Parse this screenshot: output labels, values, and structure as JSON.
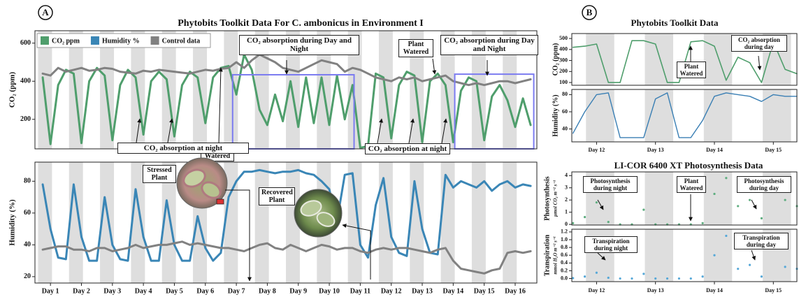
{
  "chart_data": [
    {
      "type": "line",
      "panel": "A",
      "title": "Phytobits Toolkit Data For C. ambonicus in Environment I",
      "ylabel": "CO₂ (ppm)",
      "legend": "upper left",
      "xlim": [
        0.5,
        16.7
      ],
      "ylim": [
        45,
        665
      ],
      "yticks": [
        200,
        400,
        600
      ],
      "x": [
        0.75,
        1,
        1.25,
        1.5,
        1.75,
        2,
        2.25,
        2.5,
        2.75,
        3,
        3.25,
        3.5,
        3.75,
        4,
        4.25,
        4.5,
        4.75,
        5,
        5.25,
        5.5,
        5.75,
        6,
        6.25,
        6.5,
        6.75,
        7,
        7.25,
        7.5,
        7.75,
        8,
        8.25,
        8.5,
        8.75,
        9,
        9.25,
        9.5,
        9.75,
        10,
        10.25,
        10.5,
        10.75,
        11,
        11.25,
        11.5,
        11.75,
        12,
        12.25,
        12.5,
        12.75,
        13,
        13.25,
        13.5,
        13.75,
        14,
        14.25,
        14.5,
        14.75,
        15,
        15.25,
        15.5,
        15.75,
        16,
        16.25,
        16.5
      ],
      "series": [
        {
          "name": "CO₂ ppm",
          "color": "#4f9e6c",
          "values": [
            420,
            70,
            380,
            460,
            440,
            75,
            400,
            470,
            430,
            90,
            380,
            460,
            420,
            120,
            400,
            450,
            410,
            110,
            380,
            450,
            420,
            180,
            420,
            470,
            480,
            330,
            540,
            460,
            250,
            170,
            330,
            190,
            400,
            160,
            420,
            180,
            420,
            170,
            430,
            200,
            380,
            50,
            60,
            440,
            420,
            100,
            380,
            450,
            430,
            80,
            400,
            440,
            380,
            80,
            350,
            420,
            400,
            90,
            320,
            380,
            300,
            160,
            310,
            170
          ]
        },
        {
          "name": "Control data",
          "color": "#818181",
          "values": [
            440,
            430,
            470,
            450,
            460,
            470,
            455,
            460,
            470,
            465,
            450,
            445,
            440,
            455,
            450,
            460,
            455,
            450,
            445,
            440,
            450,
            460,
            455,
            465,
            470,
            500,
            470,
            510,
            540,
            520,
            500,
            470,
            460,
            450,
            470,
            490,
            510,
            500,
            490,
            450,
            470,
            460,
            440,
            420,
            410,
            400,
            420,
            410,
            420,
            400,
            410,
            420,
            430,
            400,
            390,
            380,
            390,
            380,
            390,
            400,
            400,
            390,
            400,
            410
          ]
        }
      ],
      "night_bands": [
        [
          0.6,
          1.05
        ],
        [
          1.6,
          2.05
        ],
        [
          2.6,
          3.05
        ],
        [
          3.6,
          4.05
        ],
        [
          4.6,
          5.05
        ],
        [
          5.6,
          6.05
        ],
        [
          6.6,
          7.05
        ],
        [
          7.6,
          8.05
        ],
        [
          8.6,
          9.05
        ],
        [
          9.6,
          10.05
        ],
        [
          10.6,
          11.05
        ],
        [
          11.6,
          12.05
        ],
        [
          12.6,
          13.05
        ],
        [
          13.6,
          14.05
        ],
        [
          14.6,
          15.05
        ],
        [
          15.6,
          16.05
        ]
      ],
      "highlights": [
        {
          "x": [
            6.88,
            10.8
          ],
          "y": [
            45,
            434
          ]
        },
        {
          "x": [
            14.05,
            16.6
          ],
          "y": [
            45,
            437
          ]
        }
      ],
      "annotations": [
        {
          "text": "CO₂ absorption during Day and Night"
        },
        {
          "text": "Plant Watered"
        },
        {
          "text": "CO₂ absorption during Day and Night"
        },
        {
          "text": "Plant Watered"
        },
        {
          "text": "CO₂ absorption at night"
        },
        {
          "text": "CO₂ absorption at night"
        }
      ]
    },
    {
      "type": "line",
      "ylabel": "Humidity (%)",
      "xlim": [
        0.5,
        16.7
      ],
      "ylim": [
        16,
        92
      ],
      "yticks": [
        20,
        40,
        60,
        80
      ],
      "xticks": [
        {
          "value": 1,
          "label": "Day 1"
        },
        {
          "value": 2,
          "label": "Day 2"
        },
        {
          "value": 3,
          "label": "Day 3"
        },
        {
          "value": 4,
          "label": "Day 4"
        },
        {
          "value": 5,
          "label": "Day 5"
        },
        {
          "value": 6,
          "label": "Day 6"
        },
        {
          "value": 7,
          "label": "Day 7"
        },
        {
          "value": 8,
          "label": "Day 8"
        },
        {
          "value": 9,
          "label": "Day 9"
        },
        {
          "value": 10,
          "label": "Day 10"
        },
        {
          "value": 11,
          "label": "Day 11"
        },
        {
          "value": 12,
          "label": "Day 12"
        },
        {
          "value": 13,
          "label": "Day 13"
        },
        {
          "value": 14,
          "label": "Day 14"
        },
        {
          "value": 15,
          "label": "Day 15"
        },
        {
          "value": 16,
          "label": "Day 16"
        }
      ],
      "x": [
        0.75,
        1,
        1.25,
        1.5,
        1.75,
        2,
        2.25,
        2.5,
        2.75,
        3,
        3.25,
        3.5,
        3.75,
        4,
        4.25,
        4.5,
        4.75,
        5,
        5.25,
        5.5,
        5.75,
        6,
        6.25,
        6.5,
        6.75,
        7,
        7.25,
        7.5,
        7.75,
        8,
        8.25,
        8.5,
        8.75,
        9,
        9.25,
        9.5,
        9.75,
        10,
        10.25,
        10.5,
        10.75,
        11,
        11.25,
        11.5,
        11.75,
        12,
        12.25,
        12.5,
        12.75,
        13,
        13.25,
        13.5,
        13.75,
        14,
        14.25,
        14.5,
        14.75,
        15,
        15.25,
        15.5,
        15.75,
        16,
        16.25,
        16.5
      ],
      "series": [
        {
          "name": "Humidity %",
          "color": "#3a86b6",
          "values": [
            78,
            50,
            32,
            31,
            78,
            45,
            30,
            30,
            70,
            40,
            31,
            30,
            75,
            45,
            30,
            30,
            68,
            40,
            30,
            30,
            58,
            38,
            30,
            35,
            70,
            80,
            86,
            86,
            87,
            86,
            85,
            86,
            86,
            87,
            85,
            84,
            80,
            75,
            55,
            84,
            85,
            40,
            32,
            65,
            82,
            45,
            35,
            33,
            80,
            50,
            35,
            34,
            84,
            76,
            80,
            78,
            76,
            80,
            74,
            78,
            80,
            76,
            78,
            77
          ]
        },
        {
          "color": "#818181",
          "values": [
            37,
            38,
            39,
            39,
            37,
            37,
            36,
            38,
            38,
            36,
            37,
            38,
            40,
            38,
            39,
            40,
            40,
            41,
            42,
            40,
            41,
            40,
            39,
            38,
            38,
            37,
            36,
            38,
            40,
            41,
            38,
            37,
            40,
            38,
            36,
            38,
            40,
            39,
            37,
            38,
            38,
            36,
            35,
            37,
            38,
            37,
            38,
            38,
            37,
            36,
            35,
            37,
            38,
            30,
            25,
            24,
            23,
            22,
            24,
            25,
            35,
            36,
            35,
            36
          ]
        }
      ],
      "night_bands": [
        [
          0.6,
          1.05
        ],
        [
          1.6,
          2.05
        ],
        [
          2.6,
          3.05
        ],
        [
          3.6,
          4.05
        ],
        [
          4.6,
          5.05
        ],
        [
          5.6,
          6.05
        ],
        [
          6.6,
          7.05
        ],
        [
          7.6,
          8.05
        ],
        [
          8.6,
          9.05
        ],
        [
          9.6,
          10.05
        ],
        [
          10.6,
          11.05
        ],
        [
          11.6,
          12.05
        ],
        [
          12.6,
          13.05
        ],
        [
          13.6,
          14.05
        ],
        [
          14.6,
          15.05
        ],
        [
          15.6,
          16.05
        ]
      ],
      "annotations": [
        {
          "text": "Stressed Plant"
        },
        {
          "text": "Recovered Plant"
        }
      ]
    },
    {
      "type": "line",
      "panel": "B",
      "title": "Phytobits Toolkit Data",
      "ylabel": "CO₂ (ppm)",
      "xlim": [
        11.58,
        15.4
      ],
      "ylim": [
        75,
        545
      ],
      "yticks": [
        100,
        200,
        300,
        400,
        500
      ],
      "x": [
        11.6,
        11.8,
        12.0,
        12.2,
        12.4,
        12.6,
        12.8,
        13.0,
        13.2,
        13.4,
        13.6,
        13.8,
        14.0,
        14.2,
        14.4,
        14.6,
        14.8,
        15.0,
        15.2,
        15.4
      ],
      "series": [
        {
          "color": "#4f9e6c",
          "values": [
            420,
            430,
            450,
            100,
            100,
            480,
            480,
            450,
            100,
            100,
            470,
            480,
            430,
            120,
            330,
            280,
            100,
            470,
            220,
            180
          ]
        }
      ],
      "night_bands": [
        [
          11.82,
          12.3
        ],
        [
          12.82,
          13.3
        ],
        [
          13.82,
          14.3
        ],
        [
          14.82,
          15.3
        ]
      ],
      "annotations": [
        {
          "text": "Plant Watered"
        },
        {
          "text": "CO₂ absorption during day"
        }
      ]
    },
    {
      "type": "line",
      "ylabel": "Humidity (%)",
      "xlim": [
        11.58,
        15.4
      ],
      "ylim": [
        25,
        86
      ],
      "yticks": [
        40,
        60,
        80
      ],
      "xticks": [
        {
          "value": 12,
          "label": "Day 12"
        },
        {
          "value": 13,
          "label": "Day 13"
        },
        {
          "value": 14,
          "label": "Day 14"
        },
        {
          "value": 15,
          "label": "Day 15"
        }
      ],
      "x": [
        11.6,
        11.8,
        12.0,
        12.2,
        12.4,
        12.6,
        12.8,
        13.0,
        13.2,
        13.4,
        13.6,
        13.8,
        14.0,
        14.2,
        14.4,
        14.6,
        14.8,
        15.0,
        15.2,
        15.4
      ],
      "series": [
        {
          "color": "#3a7fb4",
          "values": [
            35,
            60,
            80,
            82,
            30,
            30,
            30,
            75,
            82,
            30,
            30,
            50,
            78,
            82,
            80,
            78,
            72,
            80,
            78,
            78
          ]
        }
      ],
      "night_bands": [
        [
          11.82,
          12.3
        ],
        [
          12.82,
          13.3
        ],
        [
          13.82,
          14.3
        ],
        [
          14.82,
          15.3
        ]
      ]
    },
    {
      "type": "scatter",
      "title": "LI-COR 6400 XT Photosynthesis Data",
      "ylabel": "Photosynthesis",
      "yunit": "µmol CO₂ m⁻² s⁻¹",
      "xlim": [
        11.58,
        15.4
      ],
      "ylim": [
        -0.05,
        4.3
      ],
      "yticks": [
        0,
        1,
        2,
        3,
        4
      ],
      "x": [
        11.6,
        11.8,
        12.0,
        12.2,
        12.4,
        12.6,
        12.8,
        13.0,
        13.2,
        13.4,
        13.6,
        13.8,
        14.0,
        14.2,
        14.4,
        14.6,
        14.8,
        15.0,
        15.2,
        15.4
      ],
      "series": [
        {
          "color": "#5fae80",
          "values": [
            0.1,
            0.6,
            1.8,
            0.2,
            0.0,
            0.0,
            1.2,
            0.0,
            0.0,
            0.0,
            0.0,
            0.1,
            2.5,
            3.8,
            1.5,
            2.0,
            0.5,
            3.8,
            2.0,
            1.5
          ]
        }
      ],
      "night_bands": [
        [
          11.82,
          12.3
        ],
        [
          12.82,
          13.3
        ],
        [
          13.82,
          14.3
        ],
        [
          14.82,
          15.3
        ]
      ],
      "annotations": [
        {
          "text": "Photosynthesis during night"
        },
        {
          "text": "Plant Watered"
        },
        {
          "text": "Photosynthesis during day"
        }
      ]
    },
    {
      "type": "scatter",
      "ylabel": "Transpiration",
      "yunit": "mmol H₂O m⁻² s⁻¹",
      "xlim": [
        11.58,
        15.4
      ],
      "ylim": [
        -0.08,
        1.27
      ],
      "yticks": [
        {
          "value": 0,
          "label": "0.0"
        },
        0.2,
        0.4,
        0.6,
        0.8,
        {
          "value": 1,
          "label": "1.0"
        },
        1.2
      ],
      "xticks": [
        {
          "value": 12,
          "label": "Day 12"
        },
        {
          "value": 13,
          "label": "Day 13"
        },
        {
          "value": 14,
          "label": "Day 14"
        },
        {
          "value": 15,
          "label": "Day 15"
        }
      ],
      "x": [
        11.6,
        11.8,
        12.0,
        12.2,
        12.4,
        12.6,
        12.8,
        13.0,
        13.2,
        13.4,
        13.6,
        13.8,
        14.0,
        14.2,
        14.4,
        14.6,
        14.8,
        15.0,
        15.2,
        15.4
      ],
      "series": [
        {
          "color": "#56a8d8",
          "values": [
            0.01,
            0.05,
            0.15,
            0.02,
            0.0,
            0.0,
            0.12,
            0.0,
            0.0,
            0.0,
            0.0,
            0.05,
            0.6,
            1.1,
            0.25,
            0.35,
            0.05,
            1.05,
            0.3,
            0.25
          ]
        }
      ],
      "night_bands": [
        [
          11.82,
          12.3
        ],
        [
          12.82,
          13.3
        ],
        [
          13.82,
          14.3
        ],
        [
          14.82,
          15.3
        ]
      ],
      "annotations": [
        {
          "text": "Transpiration during night"
        },
        {
          "text": "Transpiration during day"
        }
      ]
    }
  ]
}
